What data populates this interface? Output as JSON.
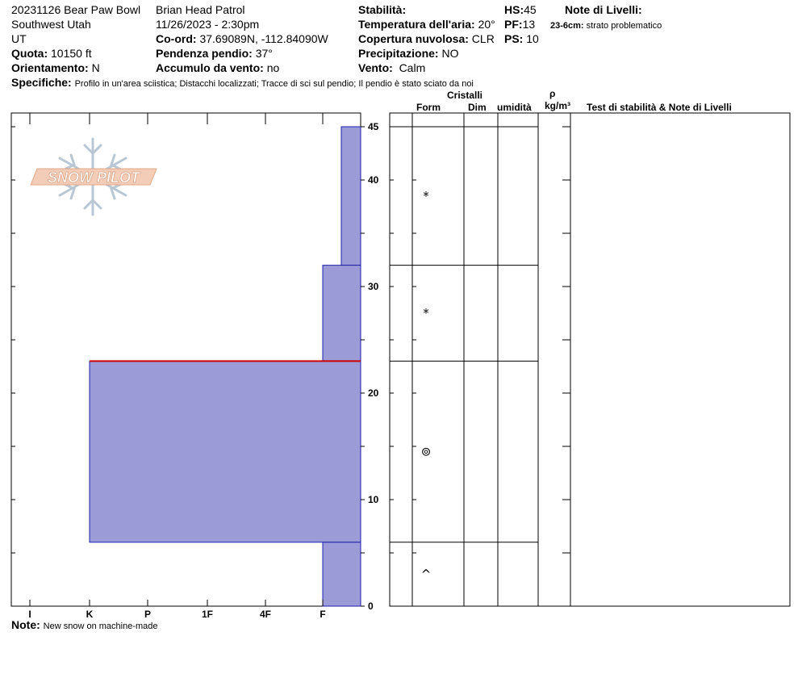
{
  "header": {
    "title": "20231126 Bear Paw Bowl",
    "region": "Southwest Utah",
    "state": "UT",
    "elevation_label": "Quota:",
    "elevation_value": "10150 ft",
    "aspect_label": "Orientamento:",
    "aspect_value": "N",
    "observer": "Brian Head Patrol",
    "datetime": "11/26/2023 - 2:30pm",
    "coord_label": "Co-ord:",
    "coord_value": "37.69089N, -112.84090W",
    "slope_label": "Pendenza pendio:",
    "slope_value": "37°",
    "wind_loading_label": "Accumulo da vento:",
    "wind_loading_value": "no",
    "stability_label": "Stabilità:",
    "air_temp_label": "Temperatura dell'aria:",
    "air_temp_value": "20°",
    "sky_label": "Copertura nuvolosa:",
    "sky_value": "CLR",
    "precip_label": "Precipitazione:",
    "precip_value": "NO",
    "wind_label": "Vento:",
    "wind_value": "Calm",
    "hs_label": "HS:",
    "hs_value": "45",
    "pf_label": "PF:",
    "pf_value": "13",
    "ps_label": "PS:",
    "ps_value": "10",
    "layer_notes_label": "Note di Livelli:",
    "layer_note_depth": "23-6cm:",
    "layer_note_text": "strato problematico",
    "specifics_label": "Specifiche:",
    "specifics_value": "Profilo in un'area sciistica; Distacchi localizzati; Tracce di sci sul pendio; Il pendio è stato sciato da noi"
  },
  "logo": {
    "text": "SNOW PILOT"
  },
  "table_headers": {
    "crystals": "Cristalli",
    "form": "Form",
    "size": "Dim",
    "moisture": "umidità",
    "rho": "ρ",
    "density_unit": "kg/m³",
    "tests": "Test di stabilità & Note di Livelli"
  },
  "footer": {
    "note_label": "Note:",
    "note_value": "New snow on machine-made"
  },
  "chart_data": {
    "type": "hardness_profile",
    "y_unit": "cm",
    "y_range": [
      0,
      45
    ],
    "y_ticks": [
      "0",
      "10",
      "20",
      "30",
      "40",
      "45"
    ],
    "hardness_scale": [
      "I",
      "K",
      "P",
      "1F",
      "4F",
      "F"
    ],
    "layers": [
      {
        "top": 45,
        "bottom": 32,
        "hardness": "F-",
        "grain_form": "*"
      },
      {
        "top": 32,
        "bottom": 23,
        "hardness": "F",
        "grain_form": "*"
      },
      {
        "top": 23,
        "bottom": 6,
        "hardness": "K",
        "grain_form": "⊚"
      },
      {
        "top": 6,
        "bottom": 0,
        "hardness": "F",
        "grain_form": "^"
      }
    ],
    "problematic_interface_cm": 23,
    "bar_color": "#9b9bd7",
    "problem_line_color": "#cc0000"
  }
}
